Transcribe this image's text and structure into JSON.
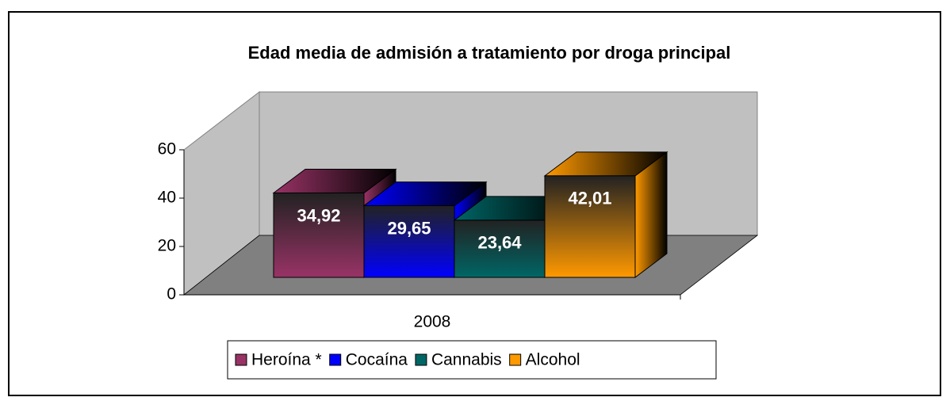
{
  "chart_data": {
    "type": "bar3d",
    "title": "Edad media de admisión a tratamiento por droga principal",
    "categories": [
      "2008"
    ],
    "series": [
      {
        "name": "Heroína *",
        "color": "#993366",
        "values": [
          34.92
        ],
        "value_labels": [
          "34,92"
        ]
      },
      {
        "name": "Cocaína",
        "color": "#0000FF",
        "values": [
          29.65
        ],
        "value_labels": [
          "29,65"
        ]
      },
      {
        "name": "Cannabis",
        "color": "#006666",
        "values": [
          23.64
        ],
        "value_labels": [
          "23,64"
        ]
      },
      {
        "name": "Alcohol",
        "color": "#FF9900",
        "values": [
          42.01
        ],
        "value_labels": [
          "42,01"
        ]
      }
    ],
    "ylim": [
      0,
      60
    ],
    "yticks": [
      0,
      20,
      40,
      60
    ],
    "legend": "bottom"
  }
}
